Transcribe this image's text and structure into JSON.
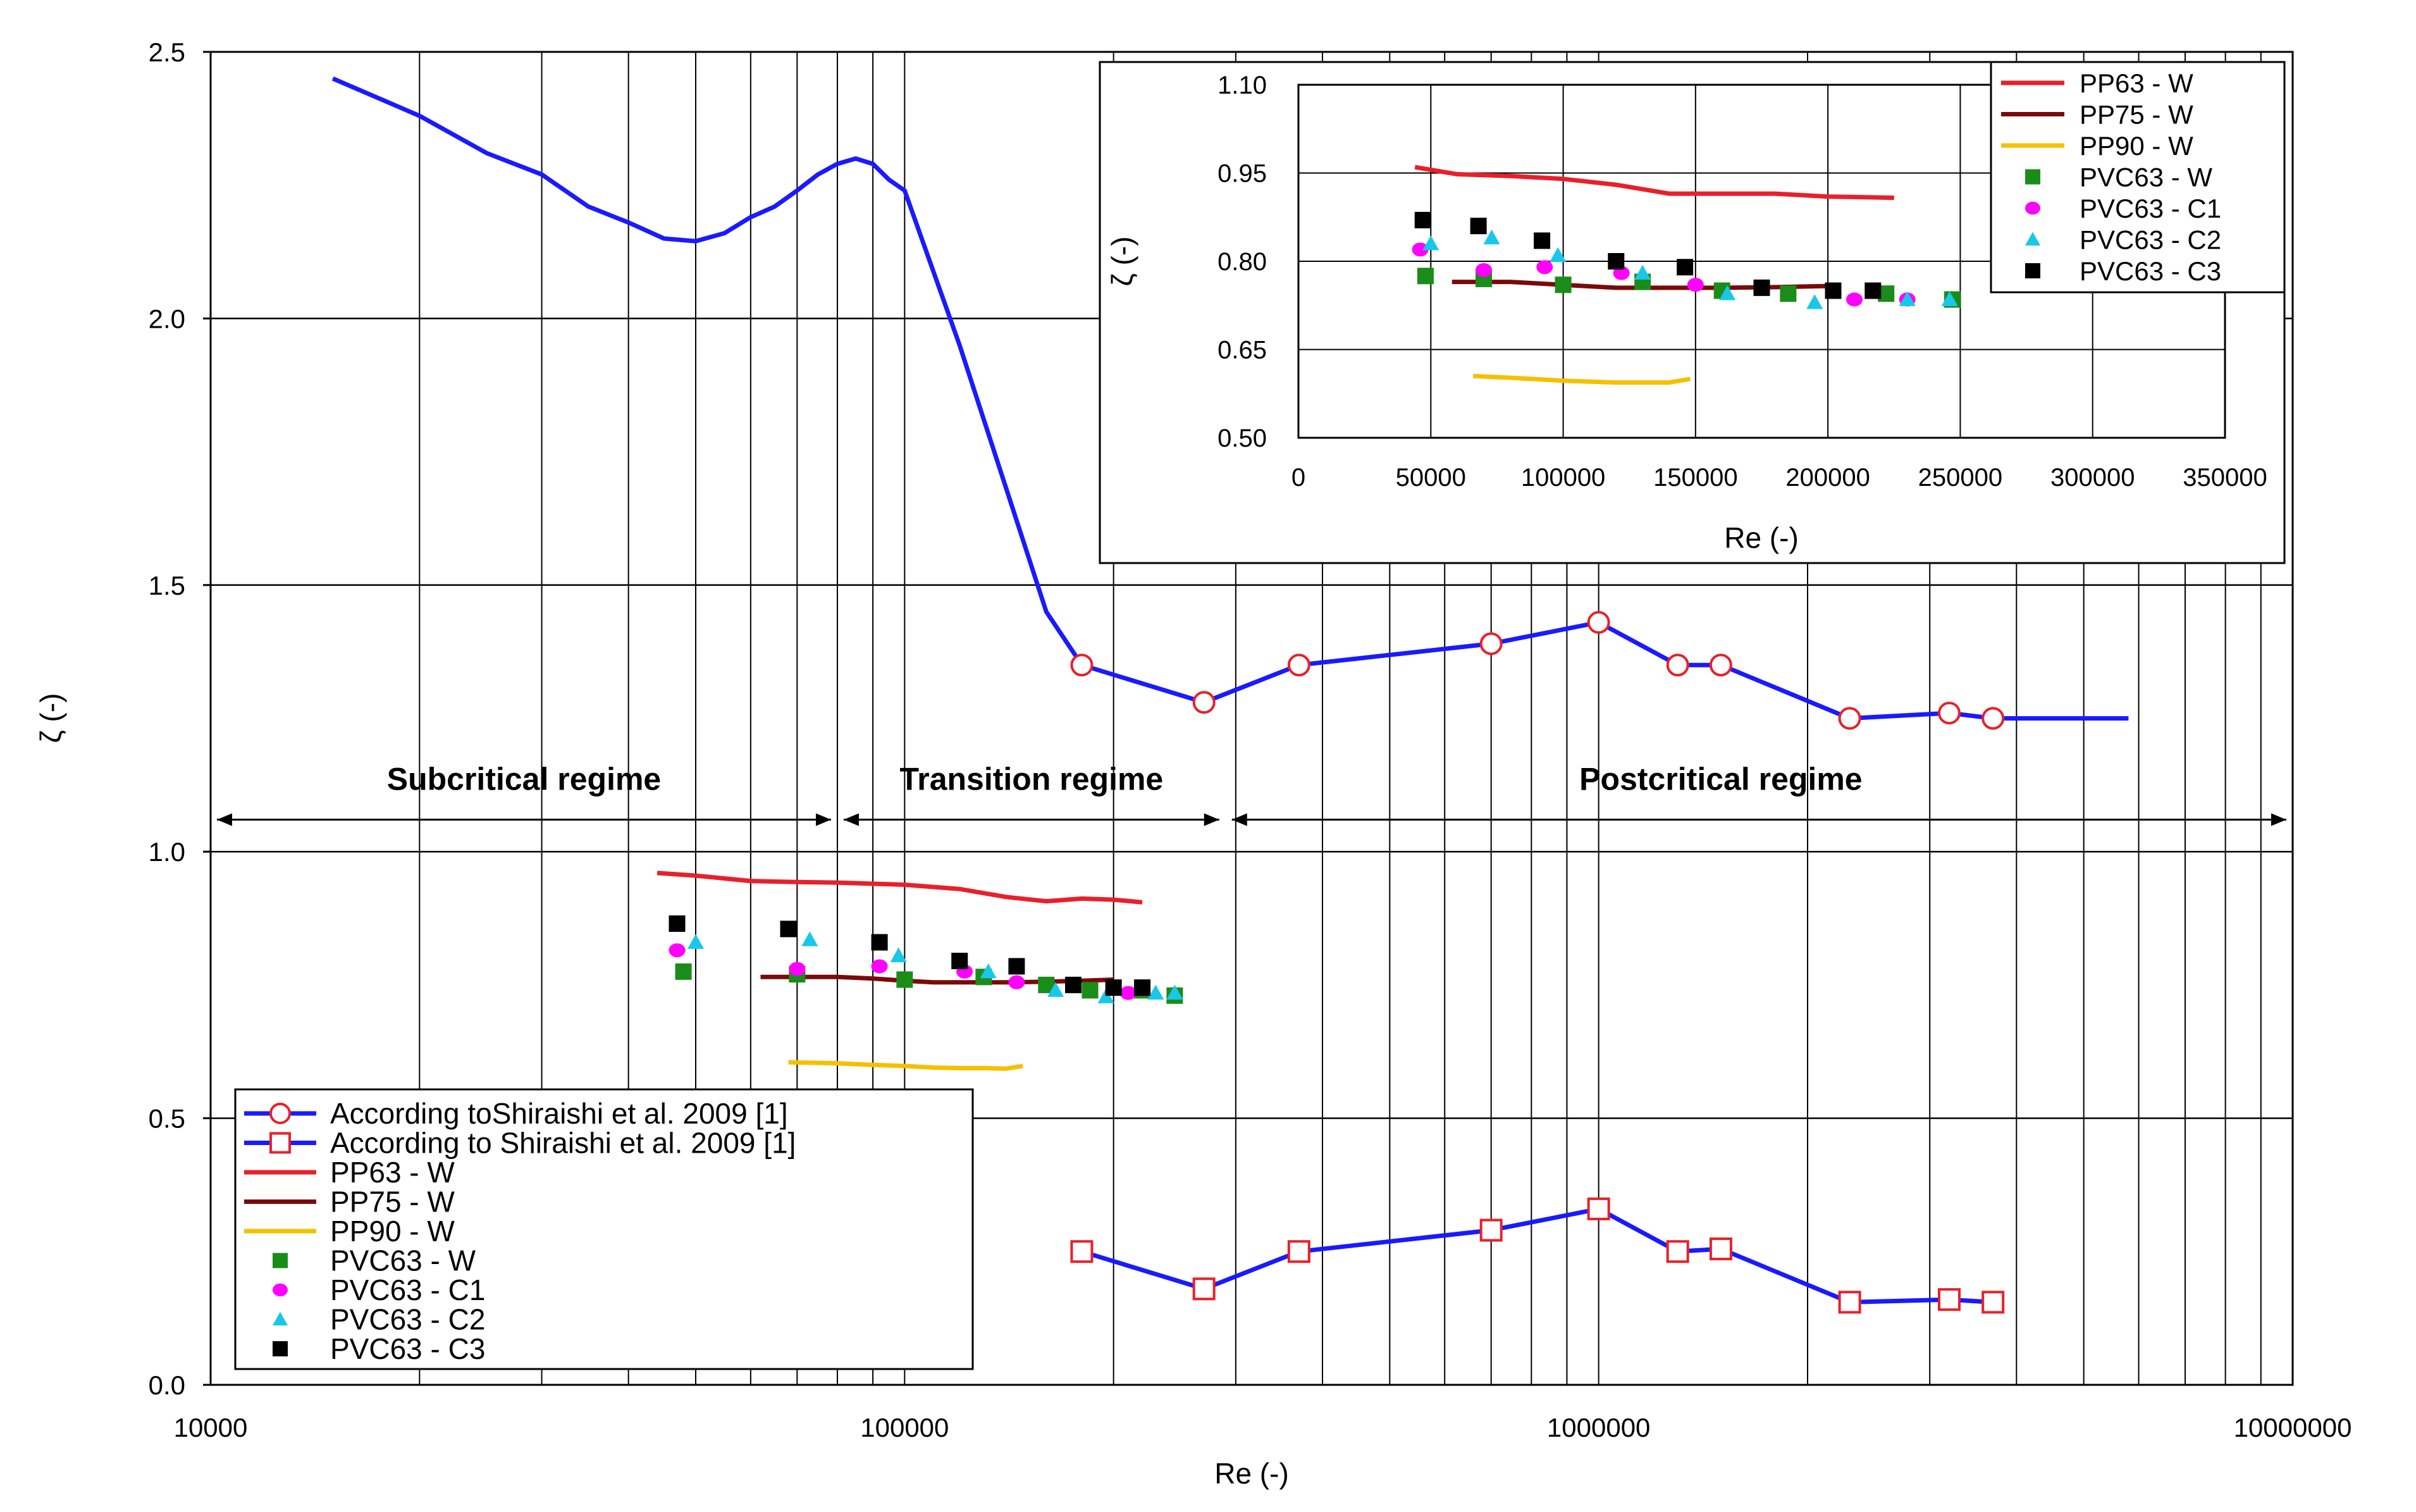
{
  "chart_data": [
    {
      "type": "line",
      "scale": {
        "x": "log",
        "y": "linear"
      },
      "xlabel": "Re (-)",
      "ylabel": "ζ (-)",
      "xlim": [
        10000,
        10000000
      ],
      "ylim": [
        0,
        2.5
      ],
      "x_tick_labels": [
        "10000",
        "100000",
        "1000000",
        "10000000"
      ],
      "y_tick_labels": [
        "0.0",
        "0.5",
        "1.0",
        "1.5",
        "2.0",
        "2.5"
      ],
      "grid": true,
      "regimes": [
        {
          "label": "Subcritical regime",
          "x_range": [
            10000,
            80000
          ],
          "y": 1.06
        },
        {
          "label": "Transition regime",
          "x_range": [
            80000,
            290000
          ],
          "y": 1.06
        },
        {
          "label": "Postcritical regime",
          "x_range": [
            290000,
            10000000
          ],
          "y": 1.06
        }
      ],
      "legend_position": "bottom-left",
      "series": [
        {
          "name": "According toShiraishi et al. 2009 [1]",
          "color": "#1a1aff",
          "marker": "circle",
          "marker_color": "#e8202a",
          "curve": [
            [
              15000,
              2.45
            ],
            [
              20000,
              2.38
            ],
            [
              25000,
              2.31
            ],
            [
              30000,
              2.27
            ],
            [
              35000,
              2.21
            ],
            [
              40000,
              2.18
            ],
            [
              45000,
              2.15
            ],
            [
              50000,
              2.145
            ],
            [
              55000,
              2.16
            ],
            [
              60000,
              2.19
            ],
            [
              65000,
              2.21
            ],
            [
              70000,
              2.24
            ],
            [
              75000,
              2.27
            ],
            [
              80000,
              2.29
            ],
            [
              85000,
              2.3
            ],
            [
              90000,
              2.29
            ],
            [
              95000,
              2.26
            ],
            [
              100000,
              2.24
            ],
            [
              120000,
              1.95
            ],
            [
              160000,
              1.45
            ],
            [
              180000,
              1.35
            ]
          ],
          "x": [
            180000,
            270000,
            370000,
            700000,
            1000000,
            1300000,
            1500000,
            2300000,
            3200000,
            3700000
          ],
          "values": [
            1.35,
            1.28,
            1.35,
            1.39,
            1.43,
            1.35,
            1.35,
            1.25,
            1.26,
            1.25
          ],
          "tail": [
            [
              3700000,
              1.25
            ],
            [
              5800000,
              1.25
            ]
          ]
        },
        {
          "name": "According to Shiraishi et al. 2009 [1]",
          "color": "#1a1aff",
          "marker": "square",
          "marker_color": "#e8202a",
          "x": [
            180000,
            270000,
            370000,
            700000,
            1000000,
            1300000,
            1500000,
            2300000,
            3200000,
            3700000
          ],
          "values": [
            0.25,
            0.18,
            0.25,
            0.29,
            0.33,
            0.25,
            0.255,
            0.155,
            0.16,
            0.155
          ]
        },
        {
          "name": "PP63 - W",
          "color": "#e8202a",
          "marker": "none",
          "x": [
            44000,
            50000,
            60000,
            70000,
            80000,
            100000,
            120000,
            140000,
            160000,
            180000,
            200000,
            220000
          ],
          "values": [
            0.96,
            0.955,
            0.945,
            0.943,
            0.942,
            0.938,
            0.93,
            0.915,
            0.907,
            0.912,
            0.91,
            0.905
          ]
        },
        {
          "name": "PP75 - W",
          "color": "#7a0a0a",
          "marker": "none",
          "x": [
            62000,
            70000,
            80000,
            90000,
            100000,
            110000,
            120000,
            140000,
            160000,
            180000,
            200000
          ],
          "values": [
            0.765,
            0.765,
            0.765,
            0.762,
            0.758,
            0.755,
            0.755,
            0.755,
            0.756,
            0.758,
            0.76
          ]
        },
        {
          "name": "PP90 - W",
          "color": "#f5c000",
          "marker": "none",
          "x": [
            68000,
            80000,
            90000,
            100000,
            110000,
            120000,
            130000,
            140000,
            148000
          ],
          "values": [
            0.605,
            0.603,
            0.6,
            0.598,
            0.595,
            0.594,
            0.594,
            0.593,
            0.598
          ]
        },
        {
          "name": "PVC63 - W",
          "color": "#1a8c1a",
          "marker": "square-filled",
          "x": [
            48000,
            70000,
            100000,
            130000,
            160000,
            185000,
            220000,
            245000
          ],
          "values": [
            0.775,
            0.77,
            0.76,
            0.765,
            0.75,
            0.74,
            0.74,
            0.73
          ]
        },
        {
          "name": "PVC63 - C1",
          "color": "#ff00ff",
          "marker": "circle-filled",
          "x": [
            47000,
            70000,
            92000,
            122000,
            145000,
            210000
          ],
          "values": [
            0.815,
            0.78,
            0.785,
            0.775,
            0.755,
            0.735
          ]
        },
        {
          "name": "PVC63 - C2",
          "color": "#19c8e8",
          "marker": "triangle-filled",
          "x": [
            50000,
            73000,
            98000,
            132000,
            165000,
            195000,
            230000,
            245000
          ],
          "values": [
            0.83,
            0.835,
            0.805,
            0.775,
            0.74,
            0.728,
            0.735,
            0.735
          ]
        },
        {
          "name": "PVC63 - C3",
          "color": "#000000",
          "marker": "square-filled",
          "x": [
            47000,
            68000,
            92000,
            120000,
            145000,
            175000,
            200000,
            220000
          ],
          "values": [
            0.865,
            0.855,
            0.83,
            0.795,
            0.785,
            0.75,
            0.745,
            0.745
          ]
        }
      ]
    },
    {
      "type": "line",
      "scale": {
        "x": "linear",
        "y": "linear"
      },
      "xlabel": "Re (-)",
      "ylabel": "ζ (-)",
      "xlim": [
        0,
        350000
      ],
      "ylim": [
        0.5,
        1.1
      ],
      "x_tick_labels": [
        "0",
        "50000",
        "100000",
        "150000",
        "200000",
        "250000",
        "300000",
        "350000"
      ],
      "y_tick_labels": [
        "0.50",
        "0.65",
        "0.80",
        "0.95",
        "1.10"
      ],
      "grid": true,
      "legend_position": "top-right",
      "series": [
        {
          "name": "PP63 - W",
          "color": "#e8202a",
          "marker": "none",
          "x": [
            44000,
            60000,
            80000,
            100000,
            120000,
            140000,
            160000,
            180000,
            200000,
            225000
          ],
          "values": [
            0.96,
            0.948,
            0.945,
            0.94,
            0.93,
            0.915,
            0.915,
            0.915,
            0.91,
            0.908
          ]
        },
        {
          "name": "PP75 - W",
          "color": "#7a0a0a",
          "marker": "none",
          "x": [
            58000,
            80000,
            100000,
            120000,
            140000,
            160000,
            180000,
            200000
          ],
          "values": [
            0.765,
            0.765,
            0.76,
            0.755,
            0.755,
            0.755,
            0.756,
            0.758
          ]
        },
        {
          "name": "PP90 - W",
          "color": "#f5c000",
          "marker": "none",
          "x": [
            66000,
            80000,
            100000,
            120000,
            140000,
            148000
          ],
          "values": [
            0.605,
            0.602,
            0.597,
            0.594,
            0.594,
            0.6
          ]
        },
        {
          "name": "PVC63 - W",
          "color": "#1a8c1a",
          "marker": "square-filled",
          "x": [
            48000,
            70000,
            100000,
            130000,
            160000,
            185000,
            222000,
            247000
          ],
          "values": [
            0.775,
            0.77,
            0.76,
            0.765,
            0.75,
            0.745,
            0.745,
            0.735
          ]
        },
        {
          "name": "PVC63 - C1",
          "color": "#ff00ff",
          "marker": "circle-filled",
          "x": [
            46000,
            70000,
            93000,
            122000,
            150000,
            210000,
            230000
          ],
          "values": [
            0.82,
            0.785,
            0.79,
            0.78,
            0.76,
            0.735,
            0.735
          ]
        },
        {
          "name": "PVC63 - C2",
          "color": "#19c8e8",
          "marker": "triangle-filled",
          "x": [
            50000,
            73000,
            98000,
            130000,
            162000,
            195000,
            230000,
            246000
          ],
          "values": [
            0.83,
            0.84,
            0.81,
            0.78,
            0.745,
            0.73,
            0.735,
            0.735
          ]
        },
        {
          "name": "PVC63 - C3",
          "color": "#000000",
          "marker": "square-filled",
          "x": [
            47000,
            68000,
            92000,
            120000,
            146000,
            175000,
            202000,
            217000
          ],
          "values": [
            0.87,
            0.86,
            0.835,
            0.8,
            0.79,
            0.755,
            0.75,
            0.75
          ]
        }
      ]
    }
  ]
}
